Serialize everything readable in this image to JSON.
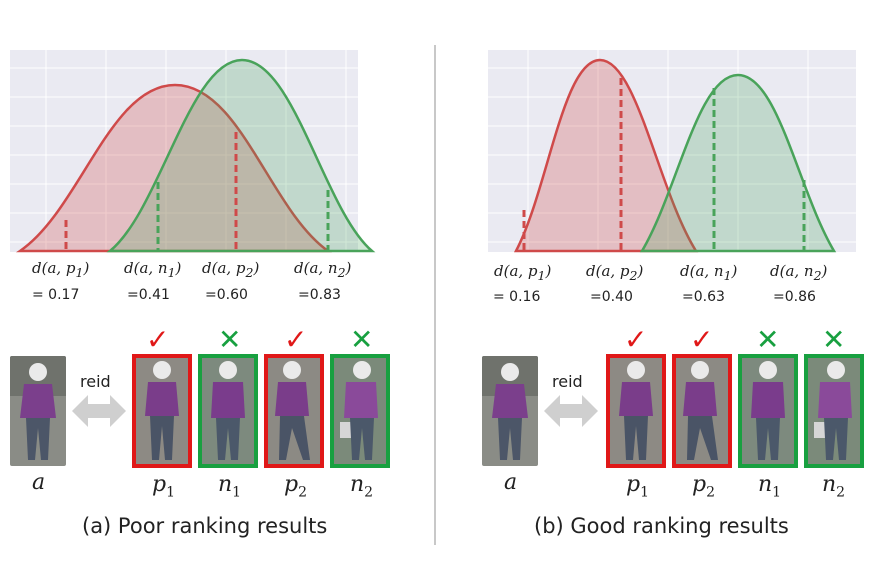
{
  "panels": [
    {
      "caption": "(a)  Poor ranking results",
      "distances": [
        {
          "label": "d(a, p",
          "sub": "1",
          "value": "= 0.17"
        },
        {
          "label": "d(a, n",
          "sub": "1",
          "value": "=0.41"
        },
        {
          "label": "d(a, p",
          "sub": "2",
          "value": "=0.60"
        },
        {
          "label": "d(a, n",
          "sub": "2",
          "value": "=0.83"
        }
      ],
      "reid_label": "reid",
      "anchor_label": "a",
      "gallery": [
        {
          "label": "p",
          "sub": "1",
          "mark": "✓"
        },
        {
          "label": "n",
          "sub": "1",
          "mark": "✕"
        },
        {
          "label": "p",
          "sub": "2",
          "mark": "✓"
        },
        {
          "label": "n",
          "sub": "2",
          "mark": "✕"
        }
      ]
    },
    {
      "caption": "(b)  Good ranking results",
      "distances": [
        {
          "label": "d(a, p",
          "sub": "1",
          "value": "= 0.16"
        },
        {
          "label": "d(a, p",
          "sub": "2",
          "value": "=0.40"
        },
        {
          "label": "d(a, n",
          "sub": "1",
          "value": "=0.63"
        },
        {
          "label": "d(a, n",
          "sub": "2",
          "value": "=0.86"
        }
      ],
      "reid_label": "reid",
      "anchor_label": "a",
      "gallery": [
        {
          "label": "p",
          "sub": "1",
          "mark": "✓"
        },
        {
          "label": "p",
          "sub": "2",
          "mark": "✓"
        },
        {
          "label": "n",
          "sub": "1",
          "mark": "✕"
        },
        {
          "label": "n",
          "sub": "2",
          "mark": "✕"
        }
      ]
    }
  ],
  "colors": {
    "positive": "#cf4a4a",
    "negative": "#49a35a",
    "positive_frame": "#e01818",
    "negative_frame": "#18a040",
    "plot_bg": "#eaeaf2",
    "arrow": "#cfcfcf"
  }
}
